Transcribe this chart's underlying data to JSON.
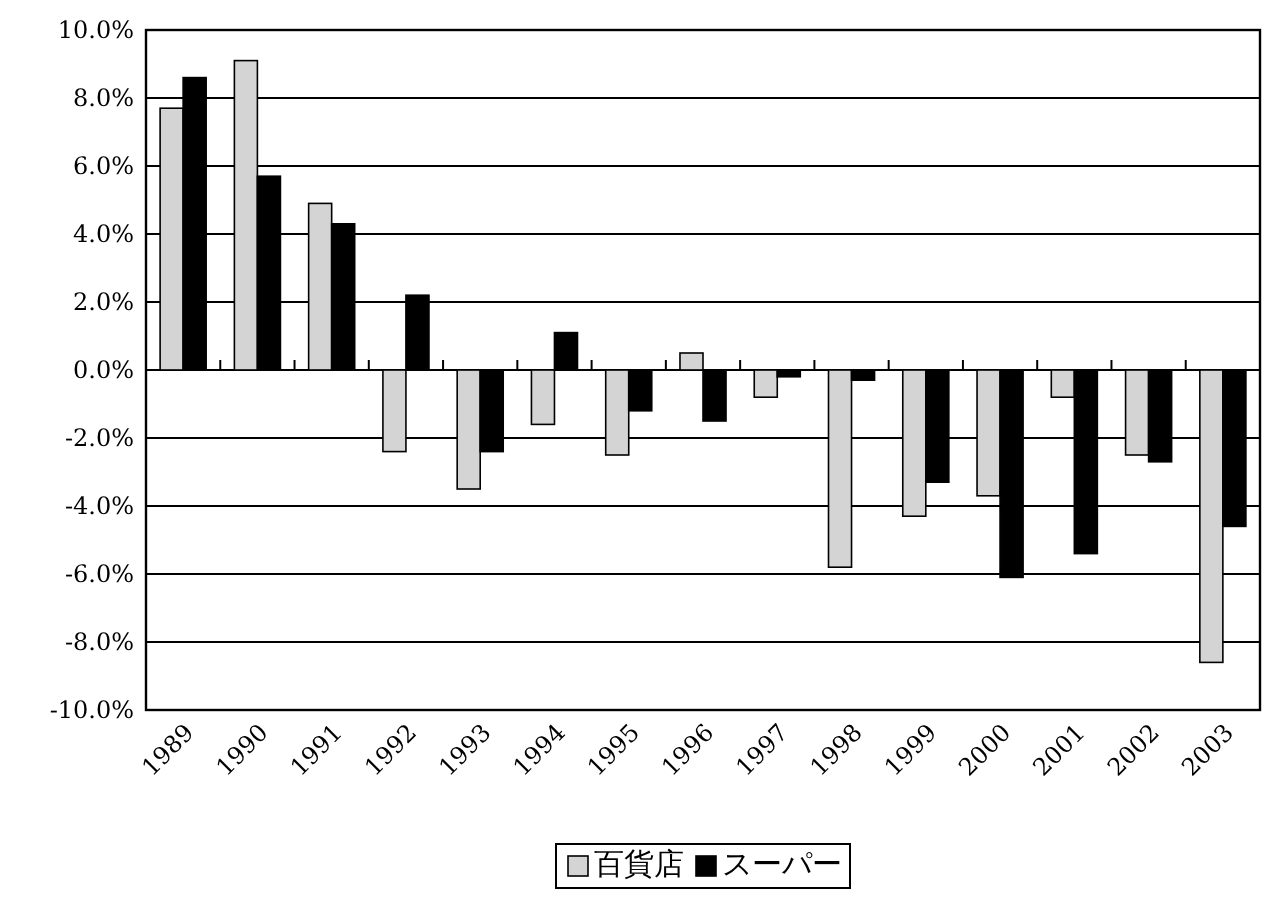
{
  "chart_data": {
    "type": "bar",
    "categories": [
      "1989",
      "1990",
      "1991",
      "1992",
      "1993",
      "1994",
      "1995",
      "1996",
      "1997",
      "1998",
      "1999",
      "2000",
      "2001",
      "2002",
      "2003"
    ],
    "series": [
      {
        "name": "百貨店",
        "color": "#d4d4d4",
        "values": [
          7.7,
          9.1,
          4.9,
          -2.4,
          -3.5,
          -1.6,
          -2.5,
          0.5,
          -0.8,
          -5.8,
          -4.3,
          -3.7,
          -0.8,
          -2.5,
          -8.6
        ]
      },
      {
        "name": "スーパー",
        "color": "#000000",
        "values": [
          8.6,
          5.7,
          4.3,
          2.2,
          -2.4,
          1.1,
          -1.2,
          -1.5,
          -0.2,
          -0.3,
          -3.3,
          -6.1,
          -5.4,
          -2.7,
          -4.6
        ]
      }
    ],
    "ylim": [
      -10,
      10
    ],
    "yticks": [
      {
        "value": -10,
        "label": "-10.0%"
      },
      {
        "value": -8,
        "label": "-8.0%"
      },
      {
        "value": -6,
        "label": "-6.0%"
      },
      {
        "value": -4,
        "label": "-4.0%"
      },
      {
        "value": -2,
        "label": "-2.0%"
      },
      {
        "value": 0,
        "label": "0.0%"
      },
      {
        "value": 2,
        "label": "2.0%"
      },
      {
        "value": 4,
        "label": "4.0%"
      },
      {
        "value": 6,
        "label": "6.0%"
      },
      {
        "value": 8,
        "label": "8.0%"
      },
      {
        "value": 10,
        "label": "10.0%"
      }
    ],
    "grid": "y",
    "legend": "bottom"
  }
}
